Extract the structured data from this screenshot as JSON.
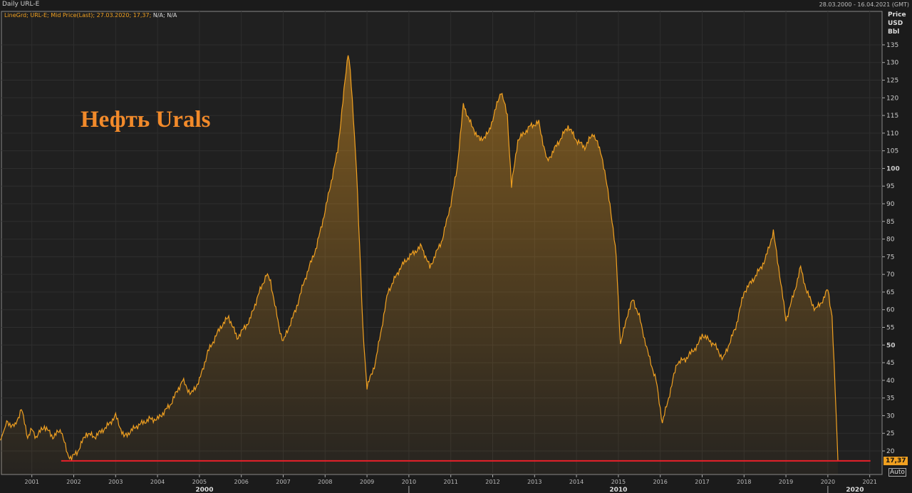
{
  "header": {
    "title": "Daily URL-E",
    "date_range": "28.03.2000 - 16.04.2021 (GMT)"
  },
  "legend": {
    "series": "LineGrd; URL-E; Mid Price(Last);  27.03.2020;  17,37;",
    "na": "N/A; N/A"
  },
  "annotation": "Нефть Urals",
  "auto_button": "Auto",
  "colors": {
    "line": "#f0a020",
    "fill": "#f0a020",
    "support_line": "#e8202a",
    "grid": "#2e2e2e",
    "background": "#202020"
  },
  "chart_data": {
    "type": "area",
    "ylabel": [
      "Price",
      "USD",
      "Bbl"
    ],
    "ylim": [
      16,
      140
    ],
    "yticks": [
      20,
      25,
      30,
      35,
      40,
      45,
      50,
      55,
      60,
      65,
      70,
      75,
      80,
      85,
      90,
      95,
      100,
      105,
      110,
      115,
      120,
      125,
      130,
      135
    ],
    "xlim": [
      "2000-03-28",
      "2021-04-16"
    ],
    "xticks": [
      "2001",
      "2002",
      "2003",
      "2004",
      "2005",
      "2006",
      "2007",
      "2008",
      "2009",
      "2010",
      "2011",
      "2012",
      "2013",
      "2014",
      "2015",
      "2016",
      "2017",
      "2018",
      "2019",
      "2020",
      "2021"
    ],
    "decade_labels": [
      "2000",
      "2010",
      "2020"
    ],
    "last_value_label": "17,37",
    "horizontal_line": {
      "value": 17.2,
      "from": 2001.7,
      "to": 2021.0
    },
    "series": [
      {
        "x": [
          2000.25,
          2000.4,
          2000.6,
          2000.75,
          2000.9,
          2001.0,
          2001.1,
          2001.3,
          2001.5,
          2001.7,
          2001.85,
          2001.95,
          2002.1,
          2002.3,
          2002.5,
          2002.8,
          2003.0,
          2003.2,
          2003.5,
          2003.8,
          2004.0,
          2004.3,
          2004.6,
          2004.8,
          2005.0,
          2005.2,
          2005.5,
          2005.7,
          2005.9,
          2006.2,
          2006.4,
          2006.6,
          2006.7,
          2006.9,
          2007.0,
          2007.3,
          2007.5,
          2007.8,
          2008.0,
          2008.3,
          2008.55,
          2008.6,
          2008.75,
          2008.9,
          2009.0,
          2009.2,
          2009.5,
          2009.8,
          2010.0,
          2010.3,
          2010.5,
          2010.8,
          2011.0,
          2011.15,
          2011.3,
          2011.5,
          2011.7,
          2011.9,
          2012.2,
          2012.35,
          2012.45,
          2012.6,
          2012.9,
          2013.1,
          2013.3,
          2013.6,
          2013.8,
          2014.0,
          2014.2,
          2014.4,
          2014.6,
          2014.8,
          2014.95,
          2015.05,
          2015.2,
          2015.35,
          2015.5,
          2015.7,
          2015.9,
          2016.05,
          2016.2,
          2016.4,
          2016.6,
          2016.9,
          2017.0,
          2017.3,
          2017.5,
          2017.8,
          2018.0,
          2018.3,
          2018.5,
          2018.7,
          2018.85,
          2019.0,
          2019.2,
          2019.35,
          2019.5,
          2019.7,
          2019.9,
          2020.0,
          2020.1,
          2020.2,
          2020.24
        ],
        "y": [
          23,
          28,
          27,
          32,
          24,
          26,
          24,
          27,
          24,
          26,
          19,
          18,
          20,
          25,
          24,
          27,
          30,
          24,
          27,
          29,
          29,
          33,
          40,
          36,
          40,
          48,
          55,
          58,
          52,
          57,
          64,
          70,
          68,
          55,
          51,
          60,
          68,
          78,
          88,
          105,
          133,
          128,
          100,
          55,
          38,
          45,
          65,
          72,
          75,
          78,
          72,
          80,
          90,
          100,
          118,
          112,
          108,
          110,
          122,
          115,
          95,
          108,
          112,
          113,
          102,
          108,
          112,
          108,
          106,
          110,
          104,
          90,
          75,
          50,
          58,
          63,
          58,
          48,
          40,
          28,
          35,
          45,
          46,
          50,
          53,
          50,
          46,
          55,
          65,
          70,
          74,
          82,
          70,
          57,
          65,
          72,
          65,
          60,
          63,
          66,
          58,
          30,
          17.37
        ]
      }
    ]
  }
}
